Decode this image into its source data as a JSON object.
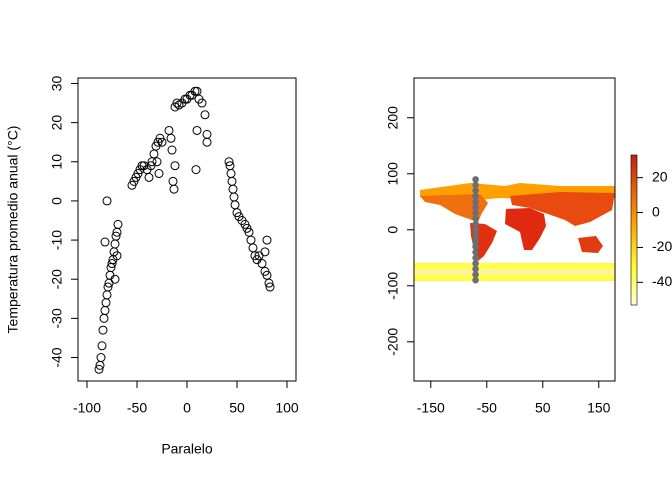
{
  "chart_data": [
    {
      "type": "scatter",
      "xlabel": "Paralelo",
      "ylabel": "Temperatura promedio anual (°C)",
      "xlim": [
        -109,
        109
      ],
      "ylim": [
        -46,
        31.4
      ],
      "xticks": [
        -100,
        -50,
        0,
        50,
        100
      ],
      "yticks": [
        -40,
        -30,
        -20,
        -10,
        0,
        10,
        20,
        30
      ],
      "marker": "open",
      "color": "#000000",
      "x": [
        -88,
        -87,
        -86,
        -85,
        -84,
        -83,
        -82,
        -81,
        -80,
        -79,
        -78,
        -77,
        -76,
        -75,
        -74,
        -73,
        -72,
        -71,
        -70,
        -69,
        -80,
        -82,
        -70,
        -72,
        -55,
        -53,
        -51,
        -49,
        -47,
        -45,
        -43,
        -40,
        -38,
        -36,
        -35,
        -33,
        -31,
        -29,
        -27,
        -25,
        -30,
        -28,
        -18,
        -16,
        -15,
        -14,
        -13,
        -12,
        -10,
        -8,
        -5,
        -2,
        0,
        3,
        5,
        8,
        10,
        12,
        15,
        18,
        20,
        20,
        10,
        9,
        -12,
        42,
        43,
        44,
        45,
        46,
        47,
        48,
        50,
        52,
        55,
        58,
        60,
        62,
        64,
        66,
        68,
        70,
        72,
        75,
        78,
        80,
        80,
        82,
        83,
        78
      ],
      "values": [
        -43,
        -42,
        -40,
        -37,
        -33,
        -30,
        -28,
        -26,
        -24,
        -22,
        -21,
        -19,
        -17,
        -16,
        -15,
        -13,
        -11,
        -9,
        -8,
        -6,
        0,
        -10.5,
        -14,
        -20,
        4,
        5,
        6,
        7,
        8,
        9,
        9,
        8,
        6,
        9,
        10,
        12,
        14,
        15,
        16,
        15,
        10,
        7,
        18,
        16,
        13,
        5,
        3,
        24,
        25,
        24.5,
        25,
        26,
        26,
        27,
        27,
        28,
        28,
        26,
        25,
        22,
        17,
        15,
        18,
        8,
        9,
        10,
        9,
        7,
        5,
        3,
        1,
        -1,
        -3,
        -4,
        -5,
        -6,
        -7,
        -8,
        -10,
        -12,
        -14,
        -15,
        -14,
        -16,
        -13,
        -10,
        -19,
        -21,
        -22,
        -18
      ]
    },
    {
      "type": "scatter",
      "xlim": [
        -180,
        179
      ],
      "ylim": [
        -270,
        271
      ],
      "xticks": [
        -150,
        -50,
        50,
        150
      ],
      "yticks": [
        -200,
        -100,
        0,
        100,
        200
      ],
      "marker": "filled",
      "color": "#6e6e6e",
      "x": [
        -70,
        -70,
        -70,
        -70,
        -70,
        -70,
        -70,
        -70,
        -70,
        -70,
        -70,
        -70,
        -70,
        -70,
        -70,
        -70,
        -70,
        -70,
        -70
      ],
      "values": [
        -90,
        -80,
        -70,
        -60,
        -50,
        -40,
        -30,
        -20,
        -10,
        0,
        10,
        20,
        30,
        40,
        50,
        60,
        70,
        80,
        90
      ],
      "colorbar": {
        "lim": [
          -53,
          33
        ],
        "ticks": [
          20,
          0,
          -20,
          -40
        ]
      }
    }
  ]
}
